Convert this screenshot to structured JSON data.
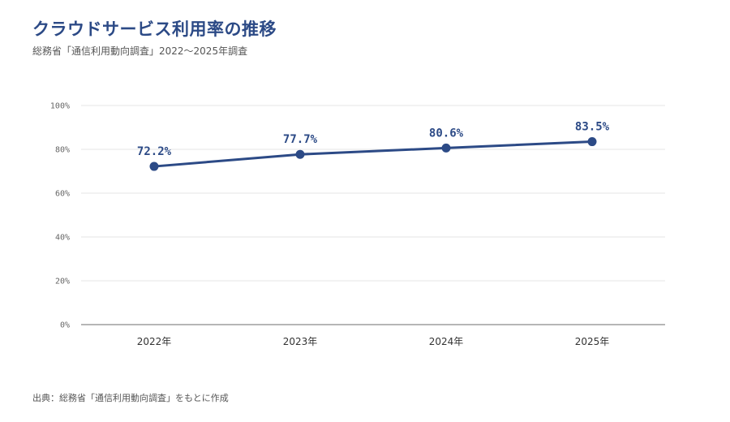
{
  "page": {
    "title": "クラウドサービス利用率の推移",
    "subtitle": "総務省「通信利用動向調査」2022〜2025年調査",
    "source": "出典：総務省「通信利用動向調査」をもとに作成"
  },
  "colors": {
    "title": "#2c4a86",
    "line": "#2c4a86",
    "grid": "#e6e6e6",
    "axis": "#8a8a8a"
  },
  "chart_data": {
    "type": "line",
    "title": "クラウドサービス利用率の推移",
    "subtitle": "総務省「通信利用動向調査」2022〜2025年調査",
    "categories": [
      "2022年",
      "2023年",
      "2024年",
      "2025年"
    ],
    "series": [
      {
        "values": [
          72.2,
          77.7,
          80.6,
          83.5
        ],
        "data_labels": [
          "72.2%",
          "77.7%",
          "80.6%",
          "83.5%"
        ]
      }
    ],
    "ylim": [
      0,
      100
    ],
    "yticks": [
      0,
      20,
      40,
      60,
      80,
      100
    ],
    "ytick_labels": [
      "0%",
      "20%",
      "40%",
      "60%",
      "80%",
      "100%"
    ],
    "grid": true,
    "legend": "none",
    "xlabel": "",
    "ylabel": ""
  }
}
